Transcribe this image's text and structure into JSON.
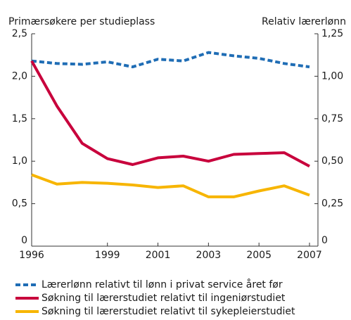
{
  "chart_data": {
    "type": "line",
    "y_label": "Primærsøkere per studieplass",
    "y2_label": "Relativ lærerlønn",
    "x": [
      1996,
      1997,
      1998,
      1999,
      2000,
      2001,
      2002,
      2003,
      2004,
      2005,
      2006,
      2007
    ],
    "xlim": [
      1996,
      2007
    ],
    "xticks": [
      1996,
      1999,
      2001,
      2003,
      2005,
      2007
    ],
    "ylim": [
      0,
      2.5
    ],
    "yticks": [
      0,
      {
        "value": 0.5,
        "label": "0,5"
      },
      {
        "value": 1.0,
        "label": "1,0"
      },
      {
        "value": 1.5,
        "label": "1,5"
      },
      {
        "value": 2.0,
        "label": "2,0"
      },
      {
        "value": 2.5,
        "label": "2,5"
      }
    ],
    "y2lim": [
      0,
      1.25
    ],
    "y2ticks": [
      0,
      {
        "value": 0.25,
        "label": "0,25"
      },
      {
        "value": 0.5,
        "label": "0,50"
      },
      {
        "value": 0.75,
        "label": "0,75"
      },
      {
        "value": 1.0,
        "label": "1,00"
      },
      {
        "value": 1.25,
        "label": "1,25"
      }
    ],
    "grid": false,
    "series": [
      {
        "name": "Lærerlønn relativt til lønn i privat service året før",
        "color": "#1f6db5",
        "dashed": true,
        "axis": "y2",
        "values": [
          1.09,
          1.075,
          1.07,
          1.085,
          1.055,
          1.1,
          1.09,
          1.14,
          1.12,
          1.105,
          1.075,
          1.055
        ]
      },
      {
        "name": "Søkning til lærerstudiet relativt til ingeniørstudiet",
        "color": "#c8003c",
        "values": [
          2.18,
          1.65,
          1.21,
          1.03,
          0.96,
          1.04,
          1.06,
          1.0,
          1.08,
          1.09,
          1.1,
          0.94
        ]
      },
      {
        "name": "Søkning til lærerstudiet relativt til sykepleierstudiet",
        "color": "#f7b500",
        "values": [
          0.84,
          0.73,
          0.75,
          0.74,
          0.72,
          0.69,
          0.71,
          0.58,
          0.58,
          0.65,
          0.71,
          0.6
        ]
      }
    ]
  }
}
